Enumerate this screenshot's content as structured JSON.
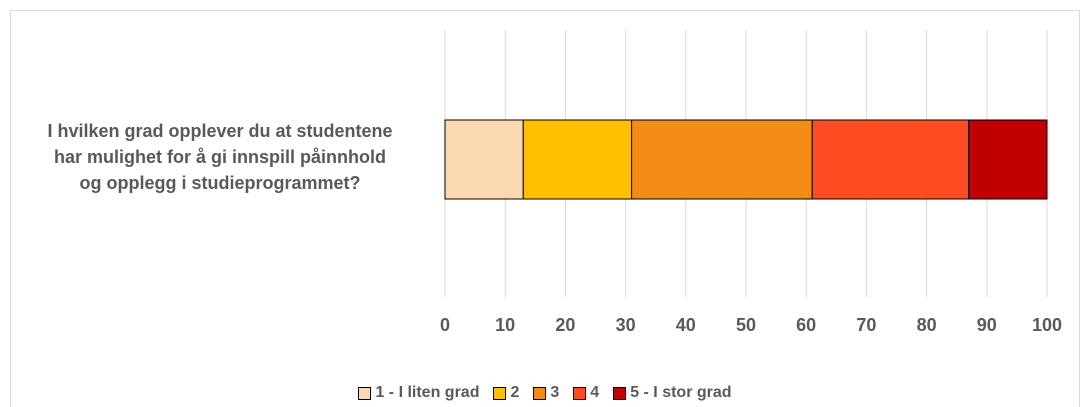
{
  "chart_data": {
    "type": "bar",
    "orientation": "horizontal",
    "stacked": true,
    "categories": [
      "I hvilken grad opplever du at studentene har mulighet for å gi innspill påinnhold og opplegg i studieprogrammet?"
    ],
    "category_lines": [
      "I hvilken grad opplever du at studentene",
      "har mulighet for å gi innspill påinnhold",
      "og opplegg i studieprogrammet?"
    ],
    "series": [
      {
        "name": "1 - I liten grad",
        "values": [
          13
        ],
        "color": "#FAD9B0"
      },
      {
        "name": "2",
        "values": [
          18
        ],
        "color": "#FFC000"
      },
      {
        "name": "3",
        "values": [
          30
        ],
        "color": "#F28C14"
      },
      {
        "name": "4",
        "values": [
          26
        ],
        "color": "#FF4B22"
      },
      {
        "name": "5 - I stor grad",
        "values": [
          13
        ],
        "color": "#C00000"
      }
    ],
    "xlim": [
      0,
      100
    ],
    "xticks": [
      "0",
      "10",
      "20",
      "30",
      "40",
      "50",
      "60",
      "70",
      "80",
      "90",
      "100"
    ],
    "grid": true,
    "legend_position": "bottom",
    "title": "",
    "xlabel": "",
    "ylabel": ""
  }
}
